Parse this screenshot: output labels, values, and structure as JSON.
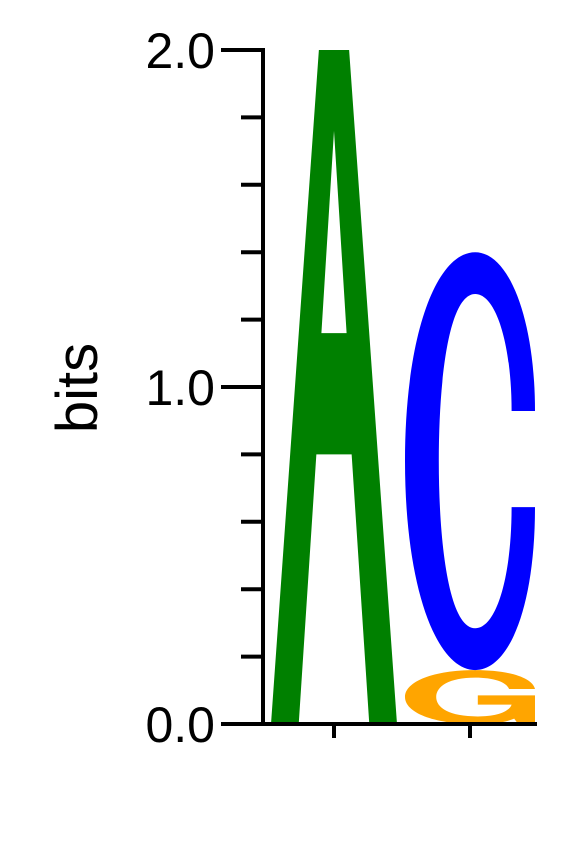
{
  "chart_data": {
    "type": "sequence-logo",
    "ylabel": "bits",
    "ylim": [
      0,
      2
    ],
    "y_ticks": [
      "0.0",
      "1.0",
      "2.0"
    ],
    "positions": [
      {
        "stack": [
          {
            "letter": "A",
            "bits": 2.0,
            "color": "#008000"
          }
        ]
      },
      {
        "stack": [
          {
            "letter": "G",
            "bits": 0.16,
            "color": "#FFA500"
          },
          {
            "letter": "C",
            "bits": 1.24,
            "color": "#0000FF"
          }
        ]
      }
    ],
    "colors": {
      "A": "#008000",
      "C": "#0000FF",
      "G": "#FFA500"
    }
  }
}
